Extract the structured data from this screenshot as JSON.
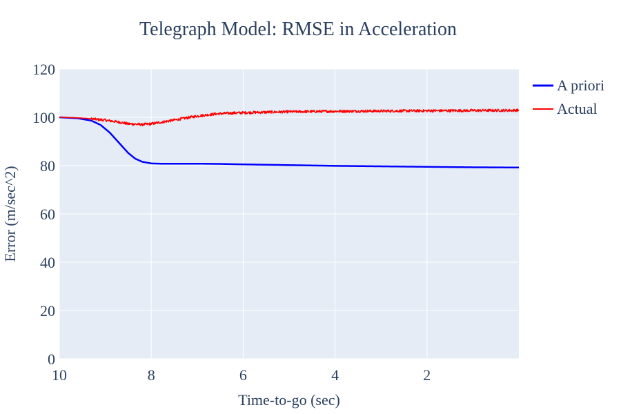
{
  "chart_data": {
    "type": "line",
    "title": "Telegraph Model: RMSE in Acceleration",
    "xlabel": "Time-to-go (sec)",
    "ylabel": "Error (m/sec^2)",
    "xlim": [
      10,
      0
    ],
    "ylim": [
      0,
      120
    ],
    "x_reversed": true,
    "x_ticks": [
      10,
      8,
      6,
      4,
      2
    ],
    "y_ticks": [
      0,
      20,
      40,
      60,
      80,
      100,
      120
    ],
    "grid": true,
    "legend_position": "top-right outside",
    "colors": {
      "plot_background": "#e5ecf6",
      "grid": "#ffffff",
      "text": "#2a3f5f"
    },
    "series": [
      {
        "name": "A priori",
        "color": "#0000ff",
        "line_width": 2.5,
        "x": [
          10,
          9.6,
          9.3,
          9.1,
          8.9,
          8.7,
          8.5,
          8.35,
          8.2,
          8.0,
          7.8,
          7.5,
          7.0,
          6.5,
          6.0,
          5.0,
          4.0,
          3.0,
          2.0,
          1.0,
          0.0
        ],
        "y": [
          100,
          99.6,
          98.6,
          96.8,
          93.6,
          89.4,
          85.2,
          82.9,
          81.6,
          80.9,
          80.8,
          80.8,
          80.8,
          80.7,
          80.5,
          80.2,
          79.9,
          79.7,
          79.5,
          79.3,
          79.2
        ]
      },
      {
        "name": "Actual",
        "color": "#ff0000",
        "line_width": 1.5,
        "noisy": true,
        "x": [
          10,
          9.5,
          9.0,
          8.7,
          8.5,
          8.2,
          8.0,
          7.7,
          7.4,
          7.0,
          6.6,
          6.2,
          5.8,
          5.0,
          4.0,
          3.0,
          2.0,
          1.0,
          0.0
        ],
        "y": [
          100,
          99.7,
          98.8,
          98.0,
          97.3,
          97.0,
          97.3,
          98.2,
          99.2,
          100.5,
          101.4,
          101.8,
          102.0,
          102.3,
          102.5,
          102.6,
          102.7,
          102.8,
          102.9
        ]
      }
    ]
  }
}
